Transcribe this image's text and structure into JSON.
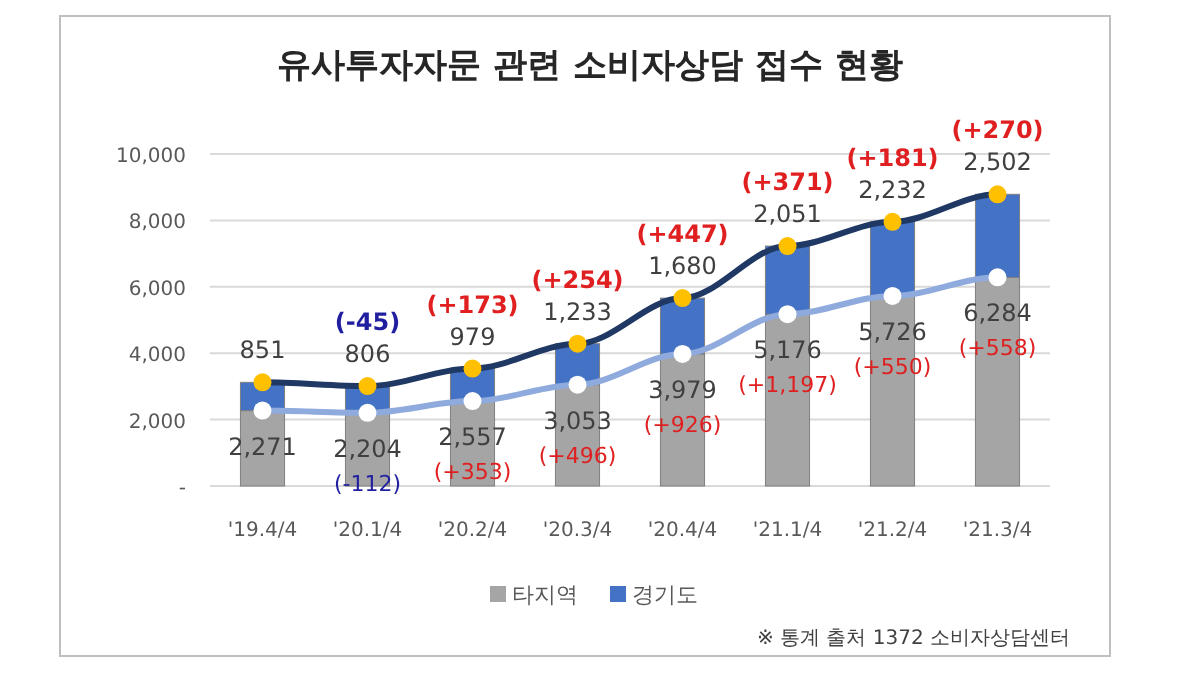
{
  "chart_data": {
    "type": "bar",
    "stacked": true,
    "title": "유사투자자문 관련 소비자상담 접수 현황",
    "categories": [
      "'19.4/4",
      "'20.1/4",
      "'20.2/4",
      "'20.3/4",
      "'20.4/4",
      "'21.1/4",
      "'21.2/4",
      "'21.3/4"
    ],
    "series": [
      {
        "name": "타지역",
        "color": "#a5a5a5",
        "values": [
          2271,
          2204,
          2557,
          3053,
          3979,
          5176,
          5726,
          6284
        ],
        "value_labels": [
          "2,271",
          "2,204",
          "2,557",
          "3,053",
          "3,979",
          "5,176",
          "5,726",
          "6,284"
        ]
      },
      {
        "name": "경기도",
        "color": "#4472c4",
        "values": [
          851,
          806,
          979,
          1233,
          1680,
          2051,
          2232,
          2502
        ],
        "value_labels": [
          "851",
          "806",
          "979",
          "1,233",
          "1,680",
          "2,051",
          "2,232",
          "2,502"
        ]
      },
      {
        "type": "line",
        "color": "#1f3864",
        "marker": "circle",
        "values": [
          3122,
          3010,
          3536,
          4286,
          5659,
          7227,
          7958,
          8786
        ]
      },
      {
        "type": "line",
        "color": "#8faadc",
        "marker": "circle",
        "values": [
          2271,
          2204,
          2557,
          3053,
          3979,
          5176,
          5726,
          6284
        ]
      }
    ],
    "ylim": [
      0,
      10000
    ],
    "yticks": [
      {
        "value": 0,
        "label": "-"
      },
      {
        "value": 2000,
        "label": "2,000"
      },
      {
        "value": 4000,
        "label": "4,000"
      },
      {
        "value": 6000,
        "label": "6,000"
      },
      {
        "value": 8000,
        "label": "8,000"
      },
      {
        "value": 10000,
        "label": "10,000"
      }
    ],
    "grid": "y",
    "legend": "bottom",
    "annotations": [
      {
        "text": "(-45)",
        "x": "'20.1/4",
        "y": 3010
      },
      {
        "text": "(+173)",
        "x": "'20.2/4",
        "y": 3536
      },
      {
        "text": "(+254)",
        "x": "'20.3/4",
        "y": 4286
      },
      {
        "text": "(+447)",
        "x": "'20.4/4",
        "y": 5659
      },
      {
        "text": "(+371)",
        "x": "'21.1/4",
        "y": 7227
      },
      {
        "text": "(+181)",
        "x": "'21.2/4",
        "y": 7958
      },
      {
        "text": "(+270)",
        "x": "'21.3/4",
        "y": 8786
      },
      {
        "text": "(-112)",
        "x": "'20.1/4",
        "y": 2204
      },
      {
        "text": "(+353)",
        "x": "'20.2/4",
        "y": 2557
      },
      {
        "text": "(+496)",
        "x": "'20.3/4",
        "y": 3053
      },
      {
        "text": "(+926)",
        "x": "'20.4/4",
        "y": 3979
      },
      {
        "text": "(+1,197)",
        "x": "'21.1/4",
        "y": 5176
      },
      {
        "text": "(+550)",
        "x": "'21.2/4",
        "y": 5726
      },
      {
        "text": "(+558)",
        "x": "'21.3/4",
        "y": 6284
      },
      "※ 통계 출처 1372 소비자상담센터"
    ]
  }
}
